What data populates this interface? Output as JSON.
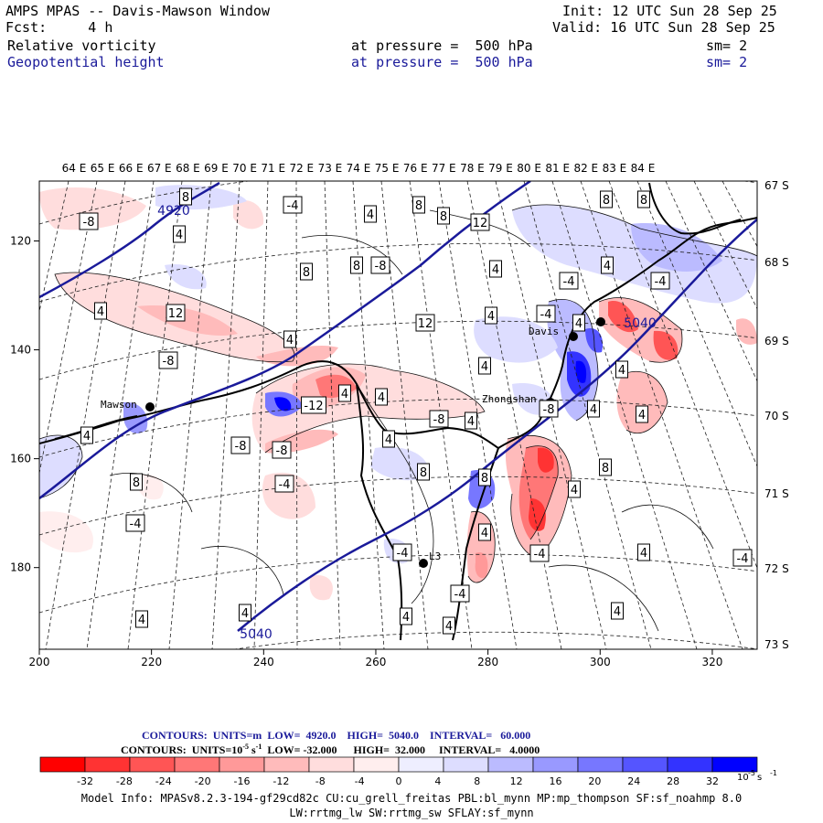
{
  "header": {
    "title": "AMPS MPAS -- Davis-Mawson Window",
    "fcst": "Fcst:     4 h",
    "init": "Init: 12 UTC Sun 28 Sep 25",
    "valid": "Valid: 16 UTC Sun 28 Sep 25",
    "field1": {
      "name": "Relative vorticity",
      "pressure": "at pressure =  500 hPa",
      "sm": "sm= 2"
    },
    "field2": {
      "name": "Geopotential height",
      "pressure": "at pressure =  500 hPa",
      "sm": "sm= 2"
    }
  },
  "colors": {
    "height_contour": "#1a1a9a",
    "negative": [
      "#ff0000",
      "#ff3333",
      "#ff5555",
      "#ff7777",
      "#ff9999",
      "#ffbbbb",
      "#ffdddd",
      "#ffeeee"
    ],
    "positive": [
      "#eeeeff",
      "#ddddff",
      "#bbbbff",
      "#9999ff",
      "#7777ff",
      "#5555ff",
      "#3333ff",
      "#0000ff"
    ]
  },
  "chart_data": {
    "type": "map",
    "top_lon_labels": [
      "64 E",
      "65 E",
      "66 E",
      "67 E",
      "68 E",
      "69 E",
      "70 E",
      "71 E",
      "72 E",
      "73 E",
      "74 E",
      "75 E",
      "76 E",
      "77 E",
      "78 E",
      "79 E",
      "80 E",
      "81 E",
      "82 E",
      "83 E",
      "84 E"
    ],
    "right_lat_labels": [
      "67 S",
      "68 S",
      "69 S",
      "70 S",
      "71 S",
      "72 S",
      "73 S"
    ],
    "x_axis": {
      "ticks": [
        "200",
        "220",
        "240",
        "260",
        "280",
        "300",
        "320"
      ],
      "range": [
        200,
        328
      ]
    },
    "y_axis": {
      "ticks": [
        "120",
        "140",
        "160",
        "180"
      ],
      "range": [
        109,
        195
      ]
    },
    "stations": [
      "Mawson",
      "Davis",
      "Zhongshan",
      "L3"
    ],
    "height_contour_labels": [
      "4920",
      "5040",
      "5040"
    ],
    "vorticity_contour_labels": [
      "8",
      "-4",
      "4",
      "8",
      "8",
      "12",
      "8",
      "8",
      "-8",
      "4",
      "4",
      "8",
      "8",
      "-8",
      "-4",
      "4",
      "-4",
      "4",
      "12",
      "12",
      "4",
      "-4",
      "4",
      "4",
      "-8",
      "4",
      "-12",
      "-8",
      "-8",
      "4",
      "8",
      "-4",
      "4",
      "8",
      "4",
      "-8",
      "4",
      "-8",
      "4",
      "-4",
      "4",
      "8",
      "8",
      "-4",
      "4",
      "4",
      "-4",
      "-4",
      "4",
      "4",
      "4",
      "-4",
      "4",
      "4",
      "4",
      "4",
      "4"
    ],
    "legend": {
      "contours1": {
        "units_label": "CONTOURS:  UNITS=m",
        "low": "LOW=  4920.0",
        "high": "HIGH=  5040.0",
        "interval": "INTERVAL=   60.000"
      },
      "contours2": {
        "units_label": "CONTOURS:  UNITS=10",
        "unit_exp": "-5",
        "unit_tail": " s",
        "unit_tail_exp": "-1",
        "low": "LOW= -32.000",
        "high": "HIGH=  32.000",
        "interval": "INTERVAL=   4.0000"
      },
      "colorbar_ticks": [
        "-32",
        "-28",
        "-24",
        "-20",
        "-16",
        "-12",
        "-8",
        "-4",
        "0",
        "4",
        "8",
        "12",
        "16",
        "20",
        "24",
        "28",
        "32"
      ],
      "colorbar_units": "10",
      "colorbar_units_exp": "-5",
      "colorbar_units_tail": " s",
      "colorbar_units_tail_exp": "-1"
    }
  },
  "footer": {
    "line1": "Model Info: MPASv8.2.3-194-gf29cd82c CU:cu_grell_freitas PBL:bl_mynn MP:mp_thompson SF:sf_noahmp 8.0",
    "line2": "LW:rrtmg_lw SW:rrtmg_sw SFLAY:sf_mynn"
  }
}
